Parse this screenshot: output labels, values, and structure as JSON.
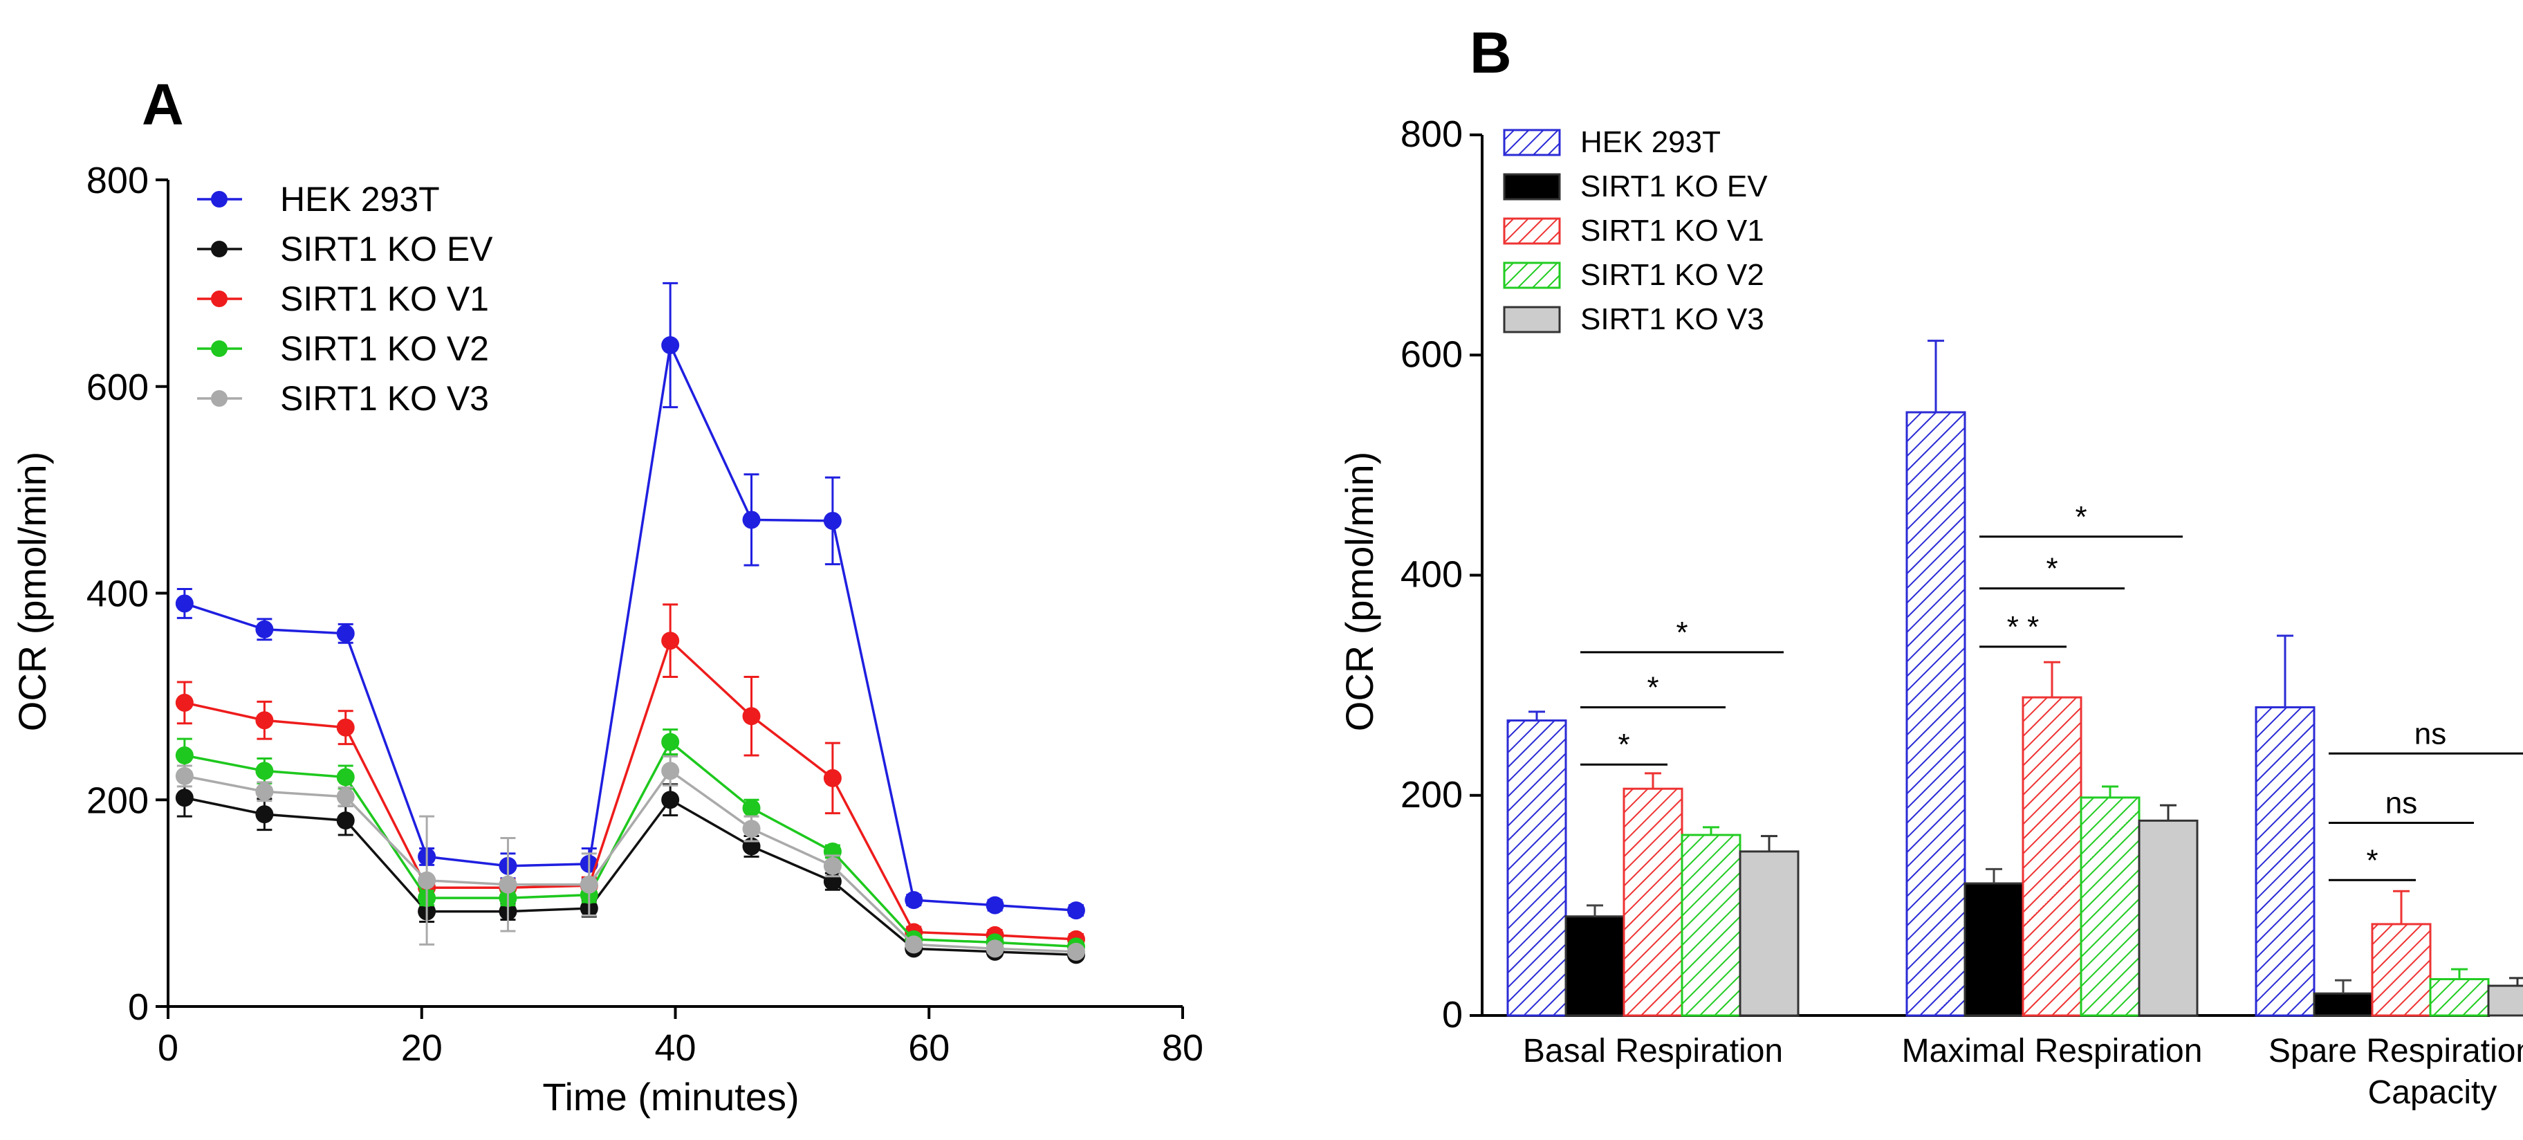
{
  "panel_a_label": "A",
  "panel_b_label": "B",
  "chart_data": [
    {
      "panel": "A",
      "type": "line",
      "title": "",
      "xlabel": "Time (minutes)",
      "ylabel": "OCR (pmol/min)",
      "xlim": [
        0,
        80
      ],
      "ylim": [
        0,
        800
      ],
      "xticks": [
        0,
        20,
        40,
        60,
        80
      ],
      "yticks": [
        0,
        200,
        400,
        600,
        800
      ],
      "grid": false,
      "legend_position": "top-left",
      "x": [
        1.3,
        7.6,
        14.0,
        20.4,
        26.8,
        33.2,
        39.6,
        46.0,
        52.4,
        58.8,
        65.2,
        71.6
      ],
      "series": [
        {
          "name": "HEK 293T",
          "color": "#1f1fe0",
          "values": [
            390,
            365,
            361,
            145,
            136,
            138,
            640,
            471,
            470,
            103,
            98,
            93
          ],
          "errors": [
            14,
            10,
            9,
            8,
            12,
            15,
            60,
            44,
            42,
            5,
            5,
            5
          ]
        },
        {
          "name": "SIRT1 KO EV",
          "color": "#111111",
          "values": [
            202,
            186,
            180,
            92,
            92,
            95,
            200,
            155,
            121,
            56,
            53,
            50
          ],
          "errors": [
            18,
            15,
            14,
            10,
            8,
            8,
            15,
            10,
            8,
            4,
            4,
            4
          ]
        },
        {
          "name": "SIRT1 KO V1",
          "color": "#ee1c1c",
          "values": [
            294,
            277,
            270,
            115,
            115,
            117,
            354,
            281,
            221,
            72,
            69,
            65
          ],
          "errors": [
            20,
            18,
            16,
            8,
            8,
            8,
            35,
            38,
            34,
            5,
            5,
            5
          ]
        },
        {
          "name": "SIRT1 KO V2",
          "color": "#1ec81e",
          "values": [
            243,
            228,
            222,
            105,
            105,
            108,
            256,
            192,
            150,
            65,
            62,
            58
          ],
          "errors": [
            16,
            12,
            11,
            7,
            7,
            7,
            12,
            8,
            6,
            4,
            4,
            4
          ]
        },
        {
          "name": "SIRT1 KO V3",
          "color": "#aaaaaa",
          "values": [
            223,
            208,
            203,
            122,
            118,
            118,
            228,
            172,
            136,
            60,
            56,
            53
          ],
          "errors": [
            10,
            9,
            9,
            62,
            45,
            30,
            14,
            12,
            10,
            4,
            4,
            4
          ]
        }
      ]
    },
    {
      "panel": "B",
      "type": "bar",
      "title": "",
      "xlabel": "",
      "ylabel": "OCR (pmol/min)",
      "ylim": [
        0,
        800
      ],
      "yticks": [
        0,
        200,
        400,
        600,
        800
      ],
      "grid": false,
      "legend_position": "top-left",
      "categories": [
        [
          "Basal Respiration"
        ],
        [
          "Maximal Respiration"
        ],
        [
          "Spare Respiration",
          "Capacity"
        ]
      ],
      "series": [
        {
          "name": "HEK 293T",
          "color": "#2b2bd6",
          "fill": "hatch",
          "values": [
            268,
            548,
            280
          ],
          "errors": [
            8,
            65,
            65
          ]
        },
        {
          "name": "SIRT1 KO EV",
          "color": "#000000",
          "fill": "solid",
          "values": [
            90,
            120,
            20
          ],
          "errors": [
            10,
            13,
            12
          ]
        },
        {
          "name": "SIRT1 KO V1",
          "color": "#ee3333",
          "fill": "hatch",
          "values": [
            206,
            289,
            83
          ],
          "errors": [
            14,
            32,
            30
          ]
        },
        {
          "name": "SIRT1 KO V2",
          "color": "#22cc22",
          "fill": "hatch",
          "values": [
            164,
            198,
            33
          ],
          "errors": [
            7,
            10,
            9
          ]
        },
        {
          "name": "SIRT1 KO V3",
          "color": "#cccccc",
          "fill": "solid",
          "values": [
            149,
            177,
            27
          ],
          "errors": [
            14,
            14,
            7
          ]
        }
      ],
      "annotations": [
        {
          "category": 0,
          "from": 1,
          "to": 2,
          "label": "*",
          "y": 228
        },
        {
          "category": 0,
          "from": 1,
          "to": 3,
          "label": "*",
          "y": 280
        },
        {
          "category": 0,
          "from": 1,
          "to": 4,
          "label": "*",
          "y": 330
        },
        {
          "category": 1,
          "from": 1,
          "to": 2,
          "label": "* *",
          "y": 335
        },
        {
          "category": 1,
          "from": 1,
          "to": 3,
          "label": "*",
          "y": 388
        },
        {
          "category": 1,
          "from": 1,
          "to": 4,
          "label": "*",
          "y": 435
        },
        {
          "category": 2,
          "from": 1,
          "to": 2,
          "label": "*",
          "y": 123
        },
        {
          "category": 2,
          "from": 1,
          "to": 3,
          "label": "ns",
          "y": 175
        },
        {
          "category": 2,
          "from": 1,
          "to": 4,
          "label": "ns",
          "y": 238
        }
      ]
    }
  ]
}
